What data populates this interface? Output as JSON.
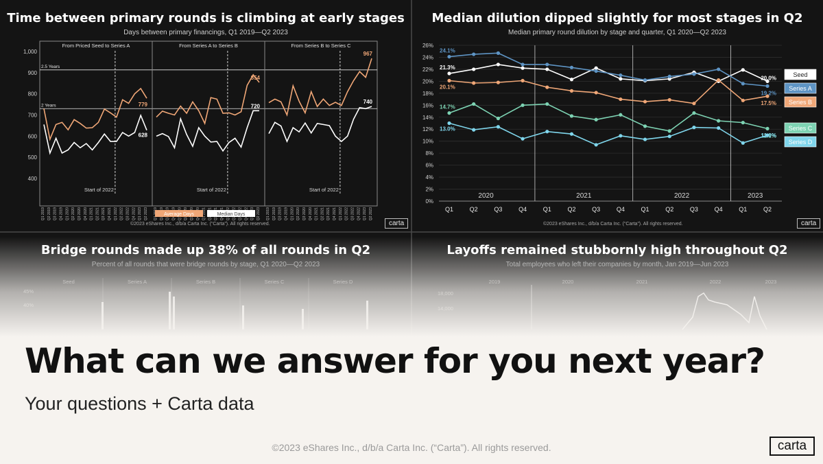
{
  "headline": "What can we answer for you next year?",
  "subheadline": "Your questions + Carta data",
  "footer_copyright": "©2023 eShares Inc., d/b/a Carta Inc. (“Carta”). All rights reserved.",
  "brand": "carta",
  "colors": {
    "background": "#111111",
    "light_bg": "#f6f3ef",
    "orange": "#f0a777",
    "white": "#ffffff",
    "blue": "#5e94c4",
    "green": "#7dd3b3",
    "cyan": "#7fd6ec"
  },
  "chart_data": [
    {
      "type": "line",
      "title": "Time between primary rounds is climbing at early stages",
      "subtitle": "Days between primary financings, Q1 2019—Q2 2023",
      "ylim": [
        400,
        1000
      ],
      "yticks": [
        "1,000",
        "900",
        "800",
        "700",
        "600",
        "500",
        "400"
      ],
      "panels": [
        "From Priced Seed to Series A",
        "From Series A to Series B",
        "From Series B to Series C"
      ],
      "reference_lines": [
        {
          "label": "2.5 Years",
          "value": 913
        },
        {
          "label": "2 Years",
          "value": 730
        }
      ],
      "annotation": "Start of 2022",
      "x_labels": [
        "Q1 2019",
        "Q2 2019",
        "Q3 2019",
        "Q4 2019",
        "Q1 2020",
        "Q2 2020",
        "Q3 2020",
        "Q4 2020",
        "Q1 2021",
        "Q2 2021",
        "Q3 2021",
        "Q4 2021",
        "Q1 2022",
        "Q2 2022",
        "Q3 2022",
        "Q4 2022",
        "Q1 2023",
        "Q2 2023"
      ],
      "legend": [
        "Average Days",
        "Median Days"
      ],
      "series": [
        {
          "name": "Average Days",
          "panel": 0,
          "values": [
            730,
            585,
            655,
            665,
            630,
            678,
            660,
            638,
            640,
            665,
            728,
            710,
            690,
            772,
            755,
            800,
            825,
            779
          ]
        },
        {
          "name": "Median Days",
          "panel": 0,
          "values": [
            655,
            520,
            590,
            520,
            535,
            570,
            545,
            565,
            535,
            570,
            610,
            575,
            575,
            617,
            600,
            617,
            698,
            628
          ]
        },
        {
          "name": "Average Days",
          "panel": 1,
          "values": [
            690,
            718,
            708,
            700,
            742,
            708,
            762,
            720,
            660,
            782,
            775,
            708,
            710,
            700,
            715,
            840,
            890,
            854
          ]
        },
        {
          "name": "Median Days",
          "panel": 1,
          "values": [
            600,
            612,
            598,
            545,
            682,
            608,
            552,
            640,
            600,
            572,
            575,
            530,
            570,
            590,
            548,
            640,
            720,
            720
          ]
        },
        {
          "name": "Average Days",
          "panel": 2,
          "values": [
            758,
            775,
            762,
            700,
            838,
            765,
            710,
            810,
            740,
            775,
            745,
            760,
            745,
            810,
            862,
            905,
            878,
            967
          ]
        },
        {
          "name": "Median Days",
          "panel": 2,
          "values": [
            612,
            665,
            648,
            575,
            640,
            620,
            662,
            615,
            660,
            655,
            650,
            600,
            575,
            600,
            680,
            735,
            730,
            740
          ]
        }
      ],
      "end_labels": [
        {
          "panel": 0,
          "avg": "779",
          "median": "628"
        },
        {
          "panel": 1,
          "avg": "854",
          "median": "720"
        },
        {
          "panel": 2,
          "avg": "967",
          "median": "740"
        }
      ],
      "copyright": "©2023 eShares Inc., d/b/a Carta Inc. (“Carta”). All rights reserved."
    },
    {
      "type": "line",
      "title": "Median dilution dipped slightly for most stages in Q2",
      "subtitle": "Median primary round dilution by stage and quarter, Q1 2020—Q2 2023",
      "ylim": [
        0,
        26
      ],
      "yticks": [
        "26%",
        "24%",
        "22%",
        "20%",
        "18%",
        "16%",
        "14%",
        "12%",
        "10%",
        "8%",
        "6%",
        "4%",
        "2%",
        "0%"
      ],
      "years": [
        "2020",
        "2021",
        "2022",
        "2023"
      ],
      "categories": [
        "Q1",
        "Q2",
        "Q3",
        "Q4",
        "Q1",
        "Q2",
        "Q3",
        "Q4",
        "Q1",
        "Q2",
        "Q3",
        "Q4",
        "Q1",
        "Q2"
      ],
      "series": [
        {
          "name": "Seed",
          "color": "#ffffff",
          "values": [
            21.3,
            22.0,
            22.8,
            22.2,
            22.0,
            20.3,
            22.2,
            20.4,
            20.1,
            20.4,
            21.5,
            20.0,
            21.9,
            20.0
          ],
          "start_label": "21.3%",
          "end_label": "20.0%"
        },
        {
          "name": "Series A",
          "color": "#5e94c4",
          "values": [
            24.1,
            24.5,
            24.7,
            22.8,
            22.8,
            22.3,
            21.7,
            21.0,
            20.2,
            20.8,
            21.2,
            22.0,
            19.6,
            19.2
          ],
          "start_label": "24.1%",
          "end_label": "19.2%"
        },
        {
          "name": "Series B",
          "color": "#f0a777",
          "values": [
            20.1,
            19.7,
            19.8,
            20.1,
            19.0,
            18.4,
            18.1,
            17.0,
            16.6,
            16.9,
            16.3,
            20.2,
            16.8,
            17.5
          ],
          "start_label": "20.1%",
          "end_label": "17.5%"
        },
        {
          "name": "Series C",
          "color": "#7dd3b3",
          "values": [
            14.7,
            16.2,
            13.8,
            16.0,
            16.2,
            14.2,
            13.6,
            14.4,
            12.5,
            11.7,
            14.7,
            13.4,
            13.1,
            12.1
          ],
          "start_label": "14.7%",
          "end_label": "12.1%"
        },
        {
          "name": "Series D",
          "color": "#7fd6ec",
          "values": [
            13.0,
            11.9,
            12.4,
            10.4,
            11.6,
            11.2,
            9.4,
            10.9,
            10.3,
            10.8,
            12.3,
            12.2,
            9.7,
            11.0
          ],
          "start_label": "13.0%",
          "end_label": "11.0%"
        }
      ],
      "copyright": "©2023 eShares Inc., d/b/a Carta Inc. (“Carta”). All rights reserved."
    },
    {
      "type": "bar",
      "title": "Bridge rounds made up 38% of all rounds in Q2",
      "subtitle": "Percent of all rounds that were bridge rounds by stage, Q1 2020—Q2 2023",
      "panels": [
        "Seed",
        "Series A",
        "Series B",
        "Series C",
        "Series D"
      ],
      "yticks": [
        "45%",
        "40%"
      ]
    },
    {
      "type": "area",
      "title": "Layoffs remained stubbornly high throughout Q2",
      "subtitle": "Total employees who left their companies by month, Jan 2019—Jun 2023",
      "years": [
        "2019",
        "2020",
        "2021",
        "2022",
        "2023"
      ],
      "yticks": [
        "18,000",
        "14,000"
      ]
    }
  ]
}
